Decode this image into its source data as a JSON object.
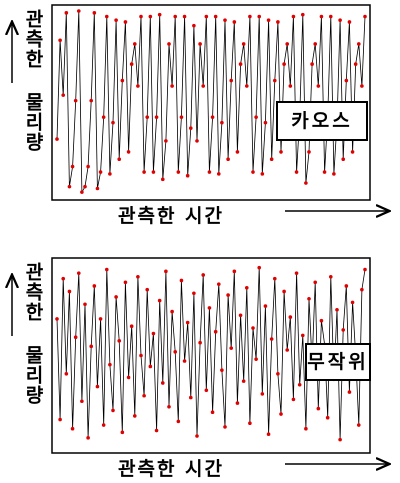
{
  "chart_data": [
    {
      "type": "line",
      "y_label": "관측한 물리량",
      "x_label": "관측한 시간",
      "annotation": "카오스",
      "ylim": [
        0,
        1
      ],
      "line_color": "#000000",
      "point_color": "#e00000",
      "values": [
        0.3,
        0.84,
        0.54,
        0.99,
        0.04,
        0.15,
        0.51,
        1.0,
        0.01,
        0.04,
        0.15,
        0.51,
        0.99,
        0.03,
        0.12,
        0.42,
        0.97,
        0.11,
        0.39,
        0.95,
        0.19,
        0.62,
        0.94,
        0.23,
        0.71,
        0.82,
        0.59,
        0.97,
        0.12,
        0.42,
        0.97,
        0.12,
        0.42,
        0.98,
        0.08,
        0.29,
        0.82,
        0.59,
        0.97,
        0.12,
        0.42,
        0.97,
        0.1,
        0.36,
        0.92,
        0.29,
        0.82,
        0.59,
        0.97,
        0.12,
        0.42,
        0.97,
        0.11,
        0.39,
        0.95,
        0.19,
        0.62,
        0.94,
        0.23,
        0.71,
        0.82,
        0.59,
        0.97,
        0.12,
        0.42,
        0.97,
        0.11,
        0.39,
        0.95,
        0.19,
        0.62,
        0.94,
        0.23,
        0.71,
        0.82,
        0.59,
        0.97,
        0.12,
        0.42,
        0.98,
        0.06,
        0.23,
        0.71,
        0.82,
        0.59,
        0.97,
        0.12,
        0.42,
        0.97,
        0.11,
        0.39,
        0.95,
        0.19,
        0.62,
        0.94,
        0.23,
        0.71,
        0.82,
        0.59,
        0.97
      ]
    },
    {
      "type": "line",
      "y_label": "관측한 물리량",
      "x_label": "관측한 시간",
      "annotation": "무작위",
      "ylim": [
        0,
        1
      ],
      "line_color": "#000000",
      "point_color": "#e00000",
      "values": [
        0.7,
        0.15,
        0.92,
        0.4,
        0.85,
        0.1,
        0.6,
        0.95,
        0.25,
        0.78,
        0.05,
        0.55,
        0.88,
        0.33,
        0.7,
        0.12,
        0.97,
        0.45,
        0.2,
        0.82,
        0.58,
        0.08,
        0.9,
        0.38,
        0.66,
        0.17,
        0.93,
        0.5,
        0.28,
        0.86,
        0.44,
        0.62,
        0.09,
        0.8,
        0.35,
        0.96,
        0.22,
        0.74,
        0.52,
        0.14,
        0.91,
        0.47,
        0.68,
        0.27,
        0.84,
        0.06,
        0.57,
        0.94,
        0.31,
        0.76,
        0.19,
        0.63,
        0.89,
        0.42,
        0.11,
        0.83,
        0.54,
        0.96,
        0.24,
        0.72,
        0.36,
        0.87,
        0.13,
        0.65,
        0.48,
        0.98,
        0.29,
        0.77,
        0.07,
        0.59,
        0.92,
        0.4,
        0.18,
        0.85,
        0.53,
        0.71,
        0.26,
        0.95,
        0.34,
        0.61,
        0.1,
        0.81,
        0.46,
        0.9,
        0.21,
        0.69,
        0.56,
        0.16,
        0.93,
        0.37,
        0.75,
        0.04,
        0.64,
        0.88,
        0.3,
        0.79,
        0.5,
        0.12,
        0.86,
        0.97
      ]
    }
  ]
}
